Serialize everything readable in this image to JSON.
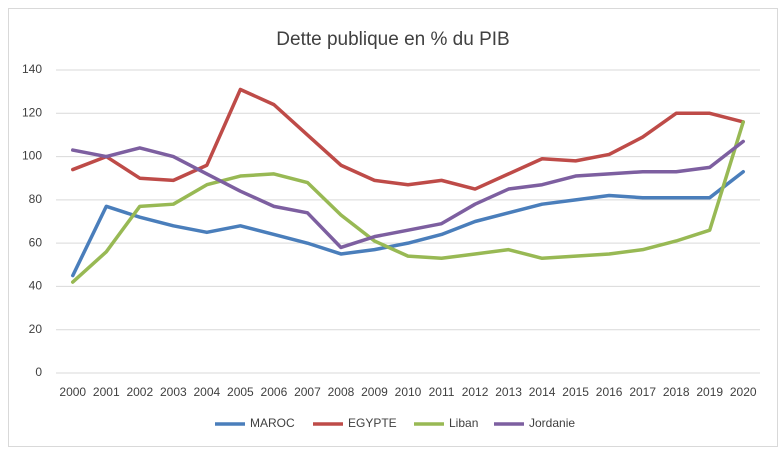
{
  "chart_data": {
    "type": "line",
    "title": "Dette publique en % du PIB",
    "categories": [
      "2000",
      "2001",
      "2002",
      "2003",
      "2004",
      "2005",
      "2006",
      "2007",
      "2008",
      "2009",
      "2010",
      "2011",
      "2012",
      "2013",
      "2014",
      "2015",
      "2016",
      "2017",
      "2018",
      "2019",
      "2020"
    ],
    "series": [
      {
        "name": "MAROC",
        "color": "#4a7ebb",
        "values": [
          45,
          77,
          72,
          68,
          65,
          68,
          64,
          60,
          55,
          57,
          60,
          64,
          70,
          74,
          78,
          80,
          82,
          81,
          81,
          81,
          93
        ]
      },
      {
        "name": "EGYPTE",
        "color": "#be4b48",
        "values": [
          94,
          100,
          90,
          89,
          96,
          131,
          124,
          110,
          96,
          89,
          87,
          89,
          85,
          92,
          99,
          98,
          101,
          109,
          120,
          120,
          116
        ]
      },
      {
        "name": "Liban",
        "color": "#98b954",
        "values": [
          42,
          56,
          77,
          78,
          87,
          91,
          92,
          88,
          73,
          61,
          54,
          53,
          55,
          57,
          53,
          54,
          55,
          57,
          61,
          66,
          116
        ]
      },
      {
        "name": "Jordanie",
        "color": "#7d5fa0",
        "values": [
          103,
          100,
          104,
          100,
          92,
          84,
          77,
          74,
          58,
          63,
          66,
          69,
          78,
          85,
          87,
          91,
          92,
          93,
          93,
          95,
          107
        ]
      }
    ],
    "ylim": [
      0,
      140
    ],
    "yticks": [
      0,
      20,
      40,
      60,
      80,
      100,
      120,
      140
    ],
    "grid": true,
    "legend": "bottom"
  }
}
